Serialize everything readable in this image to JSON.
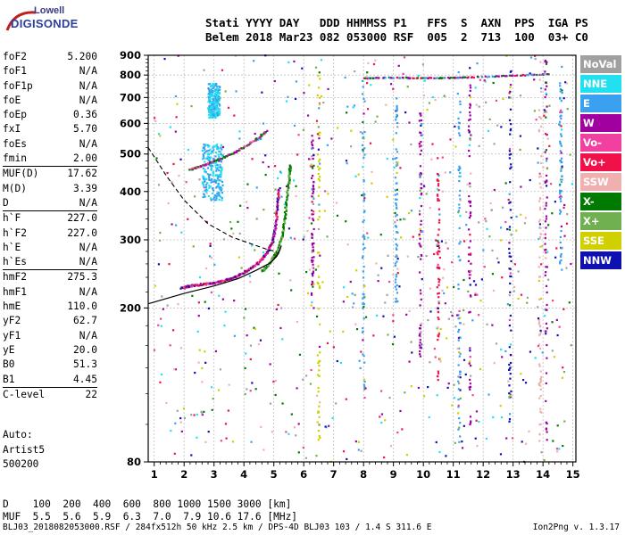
{
  "logo": {
    "line1": "Lowell",
    "line2": "DIGISONDE"
  },
  "header": {
    "line1": "Stati YYYY DAY   DDD HHMMSS P1   FFS  S  AXN  PPS  IGA PS",
    "line2": "Belem 2018 Mar23 082 053000 RSF  005  2  713  100  03+ C0"
  },
  "params": [
    {
      "k": "foF2",
      "v": "5.200"
    },
    {
      "k": "foF1",
      "v": "N/A"
    },
    {
      "k": "foF1p",
      "v": "N/A"
    },
    {
      "k": "foE",
      "v": "N/A"
    },
    {
      "k": "foEp",
      "v": "0.36"
    },
    {
      "k": "fxI",
      "v": "5.70"
    },
    {
      "k": "foEs",
      "v": "N/A"
    },
    {
      "k": "fmin",
      "v": "2.00"
    },
    {
      "k": "MUF(D)",
      "v": "17.62",
      "sep": true
    },
    {
      "k": "M(D)",
      "v": "3.39"
    },
    {
      "k": "D",
      "v": "N/A"
    },
    {
      "k": "h`F",
      "v": "227.0",
      "sep": true
    },
    {
      "k": "h`F2",
      "v": "227.0"
    },
    {
      "k": "h`E",
      "v": "N/A"
    },
    {
      "k": "h`Es",
      "v": "N/A"
    },
    {
      "k": "hmF2",
      "v": "275.3",
      "sep": true
    },
    {
      "k": "hmF1",
      "v": "N/A"
    },
    {
      "k": "hmE",
      "v": "110.0"
    },
    {
      "k": "yF2",
      "v": "62.7"
    },
    {
      "k": "yF1",
      "v": "N/A"
    },
    {
      "k": "yE",
      "v": "20.0"
    },
    {
      "k": "B0",
      "v": "51.3"
    },
    {
      "k": "B1",
      "v": "4.45"
    },
    {
      "k": "C-level",
      "v": "22",
      "sep": true
    }
  ],
  "auto": {
    "l1": "Auto:",
    "l2": "Artist5",
    "l3": "500200"
  },
  "legend": [
    {
      "label": "NoVal",
      "color": "#a0a0a0"
    },
    {
      "label": "NNE",
      "color": "#22e0f0"
    },
    {
      "label": "E",
      "color": "#3aa0f0"
    },
    {
      "label": "W",
      "color": "#a000a0"
    },
    {
      "label": "Vo-",
      "color": "#f040a0"
    },
    {
      "label": "Vo+",
      "color": "#f0104a"
    },
    {
      "label": "SSW",
      "color": "#f0b0b0"
    },
    {
      "label": "X-",
      "color": "#007a00"
    },
    {
      "label": "X+",
      "color": "#70b050"
    },
    {
      "label": "SSE",
      "color": "#d0d000"
    },
    {
      "label": "NNW",
      "color": "#1010b0"
    }
  ],
  "dtable": {
    "line1": "D    100  200  400  600  800 1000 1500 3000 [km]",
    "line2": "MUF  5.5  5.6  5.9  6.3  7.0  7.9 10.6 17.6 [MHz]"
  },
  "footer": {
    "left": "BLJ03_2018082053000.RSF / 284fx512h 50 kHz 2.5 km / DPS-4D BLJ03 103 / 1.4 S 311.6 E",
    "right": "Ion2Png v. 1.3.17"
  },
  "chart_data": {
    "type": "scatter",
    "title": "",
    "xlabel": "",
    "ylabel": "",
    "xlim": [
      0.8,
      15.1
    ],
    "ylim": [
      80,
      900
    ],
    "y_scale": "log",
    "x_ticks": [
      "1",
      "2",
      "3",
      "4",
      "5",
      "6",
      "7",
      "8",
      "9",
      "10",
      "11",
      "12",
      "13",
      "14",
      "15"
    ],
    "y_ticks": [
      "80",
      "200",
      "300",
      "400",
      "500",
      "600",
      "700",
      "800",
      "900"
    ],
    "grid": true,
    "legend": "right",
    "trace_o": [
      [
        1.9,
        225
      ],
      [
        2.2,
        228
      ],
      [
        2.6,
        230
      ],
      [
        3.0,
        232
      ],
      [
        3.4,
        236
      ],
      [
        3.8,
        242
      ],
      [
        4.2,
        252
      ],
      [
        4.5,
        262
      ],
      [
        4.75,
        276
      ],
      [
        4.95,
        295
      ],
      [
        5.05,
        318
      ],
      [
        5.12,
        360
      ],
      [
        5.18,
        410
      ]
    ],
    "trace_x": [
      [
        4.6,
        248
      ],
      [
        4.9,
        262
      ],
      [
        5.1,
        280
      ],
      [
        5.3,
        310
      ],
      [
        5.4,
        360
      ],
      [
        5.5,
        420
      ],
      [
        5.55,
        470
      ]
    ],
    "spread_f": [
      [
        2.2,
        455
      ],
      [
        2.5,
        463
      ],
      [
        2.8,
        472
      ],
      [
        3.2,
        485
      ],
      [
        3.6,
        500
      ],
      [
        4.0,
        520
      ],
      [
        4.4,
        545
      ],
      [
        4.8,
        575
      ]
    ],
    "model_solid": [
      [
        0.8,
        205
      ],
      [
        2.0,
        218
      ],
      [
        3.0,
        228
      ],
      [
        3.8,
        238
      ],
      [
        4.4,
        250
      ],
      [
        4.9,
        262
      ],
      [
        5.15,
        276
      ],
      [
        5.25,
        290
      ],
      [
        5.2,
        282
      ],
      [
        5.1,
        272
      ],
      [
        4.9,
        262
      ]
    ],
    "model_dashed": [
      [
        0.8,
        520
      ],
      [
        1.4,
        440
      ],
      [
        2.0,
        380
      ],
      [
        2.8,
        330
      ],
      [
        3.6,
        305
      ],
      [
        4.3,
        292
      ],
      [
        4.8,
        283
      ],
      [
        5.1,
        280
      ]
    ],
    "vertical_traces": [
      {
        "x": 6.3,
        "y0": 200,
        "y1": 560,
        "color": "#a000a0"
      },
      {
        "x": 6.5,
        "y0": 90,
        "y1": 880,
        "color": "#d0d000"
      },
      {
        "x": 8.0,
        "y0": 120,
        "y1": 780,
        "color": "#3aa0f0"
      },
      {
        "x": 9.1,
        "y0": 200,
        "y1": 700,
        "color": "#3aa0f0"
      },
      {
        "x": 9.9,
        "y0": 150,
        "y1": 650,
        "color": "#a000a0"
      },
      {
        "x": 10.5,
        "y0": 130,
        "y1": 500,
        "color": "#f0104a"
      },
      {
        "x": 11.2,
        "y0": 90,
        "y1": 860,
        "color": "#3aa0f0"
      },
      {
        "x": 11.55,
        "y0": 100,
        "y1": 760,
        "color": "#a000a0"
      },
      {
        "x": 12.9,
        "y0": 100,
        "y1": 840,
        "color": "#1010b0"
      },
      {
        "x": 13.9,
        "y0": 90,
        "y1": 880,
        "color": "#f0b0b0"
      },
      {
        "x": 14.1,
        "y0": 90,
        "y1": 880,
        "color": "#a000a0"
      },
      {
        "x": 14.6,
        "y0": 250,
        "y1": 780,
        "color": "#3aa0f0"
      }
    ],
    "high_trace": [
      [
        8.0,
        785
      ],
      [
        8.6,
        787
      ],
      [
        9.2,
        788
      ],
      [
        9.8,
        786
      ],
      [
        10.4,
        786
      ],
      [
        11.0,
        787
      ],
      [
        11.5,
        789
      ],
      [
        12.5,
        795
      ],
      [
        13.4,
        800
      ],
      [
        14.2,
        805
      ]
    ],
    "noise_seed": 7
  }
}
